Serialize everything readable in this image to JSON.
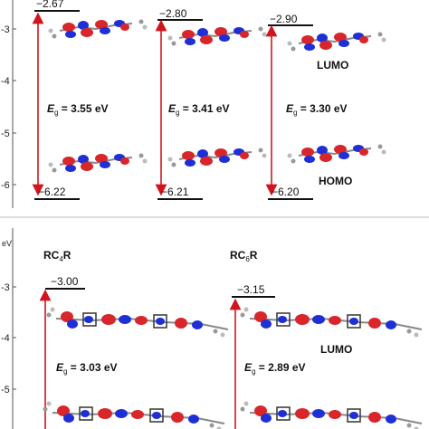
{
  "axis_unit": "eV",
  "top_panel": {
    "y_ticks": [
      "-3",
      "-4",
      "-5",
      "-6"
    ],
    "columns": [
      {
        "lumo": "−2.67",
        "homo": "−6.22",
        "gap_label": "E",
        "gap_sub": "g",
        "gap_value": " = 3.55 eV"
      },
      {
        "lumo": "−2.80",
        "homo": "−6.21",
        "gap_label": "E",
        "gap_sub": "g",
        "gap_value": " = 3.41 eV"
      },
      {
        "lumo": "−2.90",
        "homo": "−6.20",
        "gap_label": "E",
        "gap_sub": "g",
        "gap_value": " = 3.30 eV",
        "lumo_tag": "LUMO",
        "homo_tag": "HOMO"
      }
    ]
  },
  "bottom_panel": {
    "y_ticks": [
      "-3",
      "-4",
      "-5"
    ],
    "columns": [
      {
        "name": "RC",
        "name_sub": "4",
        "name_end": "R",
        "lumo": "−3.00",
        "gap_label": "E",
        "gap_sub": "g",
        "gap_value": " = 3.03 eV"
      },
      {
        "name": "RC",
        "name_sub": "6",
        "name_end": "R",
        "lumo": "−3.15",
        "gap_label": "E",
        "gap_sub": "g",
        "gap_value": " = 2.89 eV",
        "lumo_tag": "LUMO"
      }
    ]
  },
  "colors": {
    "arrow": "#d2141c",
    "orbital_red": "#d8262a",
    "orbital_blue": "#1f2fd6",
    "axis": "#555555"
  }
}
